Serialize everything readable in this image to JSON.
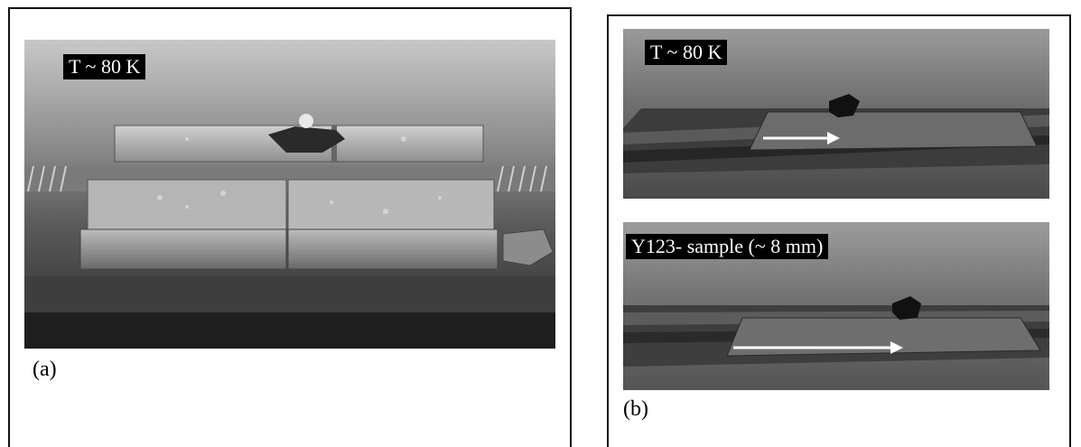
{
  "panel_a": {
    "temp_label": "T ~ 80 K",
    "caption": "(a)"
  },
  "panel_b": {
    "top": {
      "temp_label": "T ~ 80 K"
    },
    "bottom": {
      "sample_label": "Y123- sample  (~  8 mm)"
    },
    "caption": "(b)"
  },
  "colors": {
    "border": "#111111",
    "label_bg": "#000000",
    "label_fg": "#ffffff",
    "arrow": "#ffffff"
  }
}
